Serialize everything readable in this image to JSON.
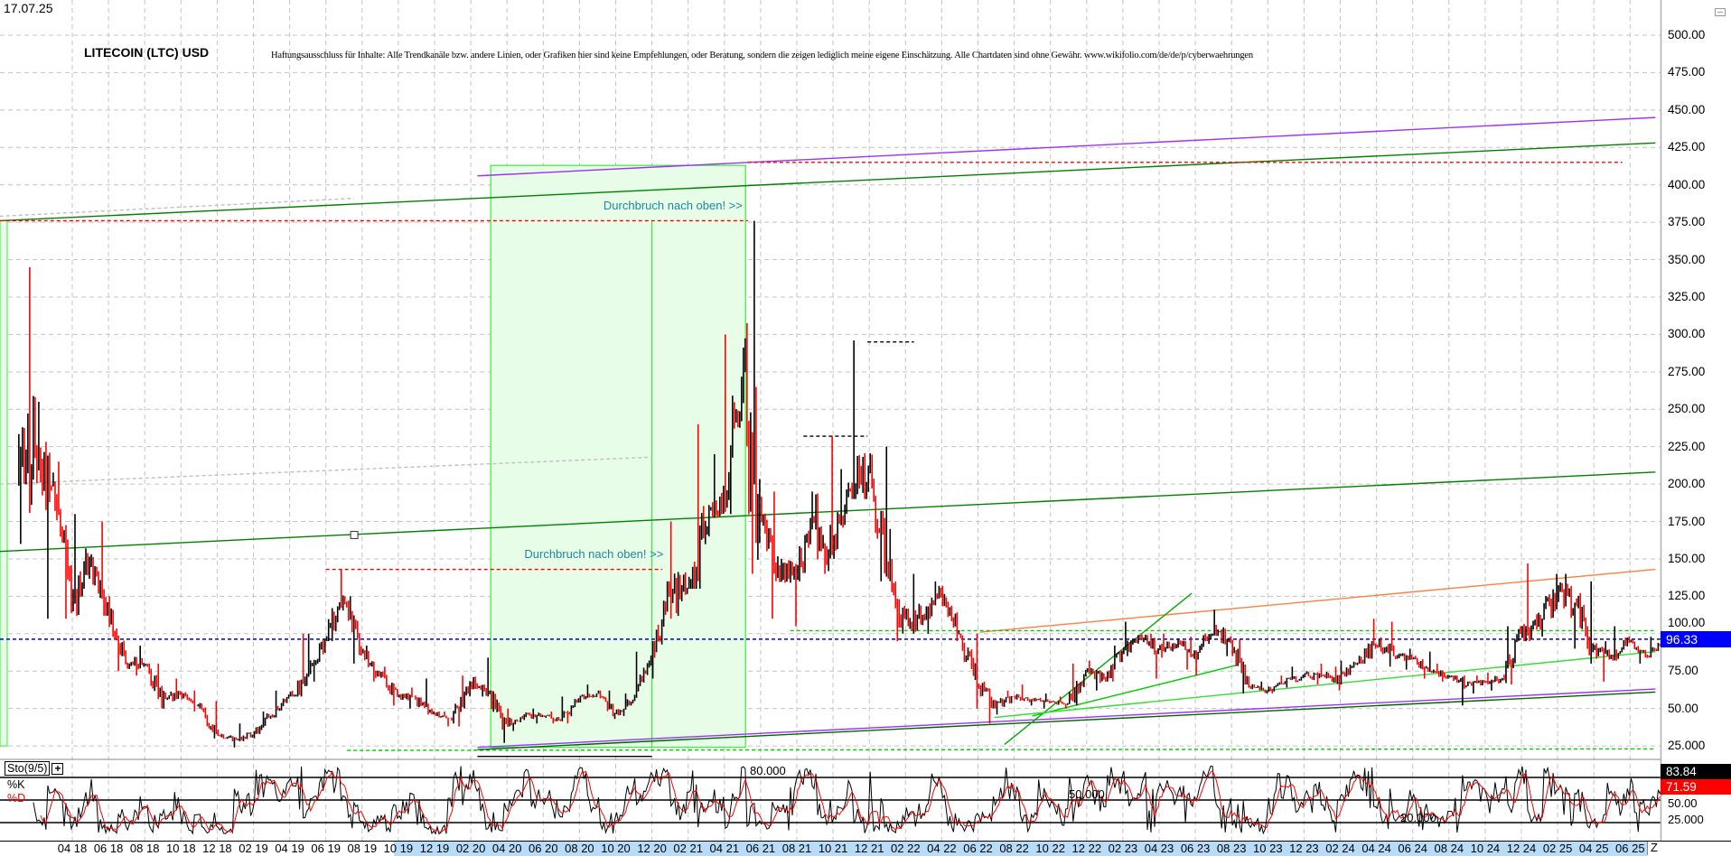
{
  "header": {
    "date_stamp": "17.07.25",
    "title": "LITECOIN (LTC) USD",
    "disclaimer": "Haftungsausschluss für Inhalte: Alle Trendkanäle bzw. andere Linien, oder Grafiken hier sind keine Empfehlungen, oder Beratung, sondern die zeigen lediglich meine eigene Einschätzung. Alle Chartdaten sind ohne Gewähr.  www.wikifolio.com/de/de/p/cyberwaehrungen"
  },
  "colors": {
    "up_bar": "#000000",
    "down_bar": "#ff0000",
    "last_price_bg": "#0000ff",
    "shade_box": "#e8fde8",
    "annotation_text": "#1a8a9a"
  },
  "chart_data": {
    "type": "candlestick",
    "title": "LITECOIN (LTC) USD",
    "price_axis": {
      "ylim": [
        25,
        500
      ],
      "ticks": [
        "500.00",
        "475.00",
        "450.00",
        "425.00",
        "400.00",
        "375.00",
        "350.00",
        "325.00",
        "300.00",
        "275.00",
        "250.00",
        "225.00",
        "200.00",
        "175.00",
        "150.00",
        "125.00",
        "100.00",
        "75.00",
        "50.00",
        "25.000"
      ],
      "tick_values": [
        500,
        475,
        450,
        425,
        400,
        375,
        350,
        325,
        300,
        275,
        250,
        225,
        200,
        175,
        150,
        125,
        100,
        75,
        50,
        25
      ],
      "grid": true,
      "side": "right"
    },
    "last_price": {
      "value": 96.33,
      "label": "96.33"
    },
    "date_axis": {
      "labels": [
        "04 18",
        "06 18",
        "08 18",
        "10 18",
        "12 18",
        "02 19",
        "04 19",
        "06 19",
        "08 19",
        "10 19",
        "12 19",
        "02 20",
        "04 20",
        "06 20",
        "08 20",
        "10 20",
        "12 20",
        "02 21",
        "04 21",
        "06 21",
        "08 21",
        "10 21",
        "12 21",
        "02 22",
        "04 22",
        "06 22",
        "08 22",
        "10 22",
        "12 22",
        "02 23",
        "04 23",
        "06 23",
        "08 23",
        "10 23",
        "12 23",
        "02 24",
        "04 24",
        "06 24",
        "08 24",
        "10 24",
        "12 24",
        "02 25",
        "04 25",
        "06 25"
      ],
      "end_button": "Z"
    },
    "series": {
      "start_month": "2018-01",
      "close": [
        220,
        200,
        118,
        148,
        118,
        80,
        80,
        58,
        60,
        52,
        33,
        30,
        32,
        45,
        58,
        72,
        95,
        122,
        88,
        72,
        58,
        56,
        47,
        42,
        68,
        60,
        40,
        45,
        45,
        42,
        56,
        60,
        47,
        55,
        85,
        125,
        130,
        170,
        195,
        270,
        185,
        145,
        140,
        175,
        155,
        195,
        210,
        148,
        110,
        112,
        125,
        102,
        65,
        52,
        58,
        56,
        54,
        53,
        75,
        70,
        88,
        98,
        90,
        92,
        88,
        100,
        96,
        65,
        62,
        68,
        72,
        72,
        70,
        80,
        92,
        85,
        83,
        75,
        72,
        65,
        68,
        70,
        100,
        110,
        125,
        120,
        90,
        85,
        95,
        85,
        96.33
      ],
      "high": [
        345,
        255,
        215,
        180,
        175,
        125,
        92,
        80,
        70,
        62,
        55,
        36,
        40,
        48,
        62,
        100,
        100,
        143,
        125,
        92,
        78,
        64,
        70,
        48,
        72,
        84,
        62,
        50,
        50,
        48,
        58,
        66,
        62,
        60,
        88,
        135,
        175,
        240,
        220,
        300,
        376,
        195,
        150,
        195,
        232,
        210,
        296,
        225,
        170,
        140,
        135,
        132,
        100,
        68,
        62,
        66,
        60,
        58,
        80,
        82,
        92,
        108,
        100,
        100,
        98,
        100,
        116,
        96,
        68,
        72,
        78,
        80,
        78,
        82,
        110,
        108,
        90,
        88,
        80,
        72,
        72,
        74,
        105,
        147,
        140,
        140,
        135,
        95,
        105,
        96,
        98
      ],
      "low": [
        160,
        110,
        110,
        112,
        112,
        75,
        72,
        50,
        50,
        48,
        30,
        24,
        28,
        30,
        44,
        58,
        68,
        95,
        80,
        68,
        52,
        50,
        46,
        38,
        38,
        58,
        27,
        35,
        40,
        40,
        40,
        54,
        43,
        45,
        55,
        70,
        110,
        130,
        165,
        180,
        140,
        110,
        105,
        135,
        140,
        150,
        190,
        135,
        95,
        100,
        100,
        95,
        50,
        40,
        46,
        52,
        50,
        50,
        52,
        62,
        68,
        85,
        70,
        84,
        76,
        72,
        85,
        60,
        60,
        60,
        64,
        66,
        62,
        66,
        80,
        78,
        76,
        70,
        68,
        52,
        60,
        62,
        66,
        95,
        98,
        90,
        80,
        68,
        82,
        80,
        84
      ]
    },
    "trendlines": [
      {
        "color": "#9b30ff",
        "style": "solid",
        "from": [
          "2020-02-12",
          406
        ],
        "to": [
          "2025-07-13",
          445
        ]
      },
      {
        "color": "#008000",
        "style": "solid",
        "from": [
          "2017-12-01",
          376
        ],
        "to": [
          "2025-07-13",
          428
        ]
      },
      {
        "color": "#008000",
        "style": "solid",
        "from": [
          "2017-12-01",
          155
        ],
        "to": [
          "2025-07-13",
          208
        ]
      },
      {
        "color": "#c0c0c0",
        "style": "dashed",
        "from": [
          "2017-12-01",
          379
        ],
        "to": [
          "2019-07-18",
          391
        ]
      },
      {
        "color": "#c0c0c0",
        "style": "dashed",
        "from": [
          "2017-12-01",
          200
        ],
        "to": [
          "2020-12-01",
          218
        ]
      },
      {
        "color": "#ff0000",
        "style": "dashed",
        "from": [
          "2017-12-01",
          376
        ],
        "to": [
          "2021-05-10",
          376
        ]
      },
      {
        "color": "#ff0000",
        "style": "dashed",
        "from": [
          "2019-06-01",
          143
        ],
        "to": [
          "2020-12-18",
          143
        ]
      },
      {
        "color": "#ff0000",
        "style": "dashed",
        "from": [
          "2021-05-10",
          415
        ],
        "to": [
          "2025-05-18",
          415
        ]
      },
      {
        "color": "#000000",
        "style": "dashed",
        "from": [
          "2021-11-28",
          295
        ],
        "to": [
          "2022-02-15",
          295
        ]
      },
      {
        "color": "#000000",
        "style": "dashed",
        "from": [
          "2021-08-12",
          232
        ],
        "to": [
          "2021-11-28",
          232
        ]
      },
      {
        "color": "#ff8040",
        "style": "solid",
        "from": [
          "2022-06-04",
          101
        ],
        "to": [
          "2025-07-13",
          143
        ]
      },
      {
        "color": "#00cc00",
        "style": "dashed",
        "from": [
          "2021-07-20",
          102
        ],
        "to": [
          "2025-07-13",
          102
        ]
      },
      {
        "color": "#00cc00",
        "style": "dashed",
        "from": [
          "2019-07-06",
          22
        ],
        "to": [
          "2025-07-13",
          23
        ]
      },
      {
        "color": "#9b30ff",
        "style": "solid",
        "from": [
          "2020-02-12",
          24
        ],
        "to": [
          "2025-07-13",
          63
        ]
      },
      {
        "color": "#006400",
        "style": "solid",
        "from": [
          "2020-02-12",
          22.5
        ],
        "to": [
          "2025-07-13",
          61
        ]
      },
      {
        "color": "#00aa00",
        "style": "solid",
        "from": [
          "2022-07-15",
          26
        ],
        "to": [
          "2023-05-25",
          127
        ]
      },
      {
        "color": "#00cc00",
        "style": "solid",
        "from": [
          "2022-09-01",
          45
        ],
        "to": [
          "2023-08-10",
          79
        ]
      },
      {
        "color": "#33dd33",
        "style": "solid",
        "from": [
          "2022-06-28",
          44
        ],
        "to": [
          "2025-07-13",
          88
        ]
      },
      {
        "color": "#000000",
        "style": "solid",
        "from": [
          "2020-02-12",
          18
        ],
        "to": [
          "2020-12-01",
          18
        ]
      }
    ],
    "shaded_box": {
      "from": [
        "2020-03-04",
        413
      ],
      "to": [
        "2021-05-06",
        24
      ],
      "divider": "2020-12-01"
    },
    "marker": {
      "at": [
        "2019-07-18",
        166
      ]
    },
    "annotations": [
      {
        "text": "Durchbruch nach oben! >>",
        "anchor_end": [
          "2021-05-01",
          381
        ]
      },
      {
        "text": "Durchbruch nach oben! >>",
        "anchor_end": [
          "2020-12-20",
          148
        ]
      }
    ],
    "stochastic": {
      "label": "Sto(9/5)",
      "add_button": "+",
      "k_label": "%K",
      "d_label": "%D",
      "k_last": "83.84",
      "d_last": "71.59",
      "levels": [
        80,
        50,
        20
      ],
      "level_labels": [
        "80.000",
        "50.000",
        "20.000"
      ],
      "axis_ticks": [
        "50.00",
        "25.000"
      ],
      "k_color": "#000000",
      "d_color": "#ff0000"
    }
  }
}
